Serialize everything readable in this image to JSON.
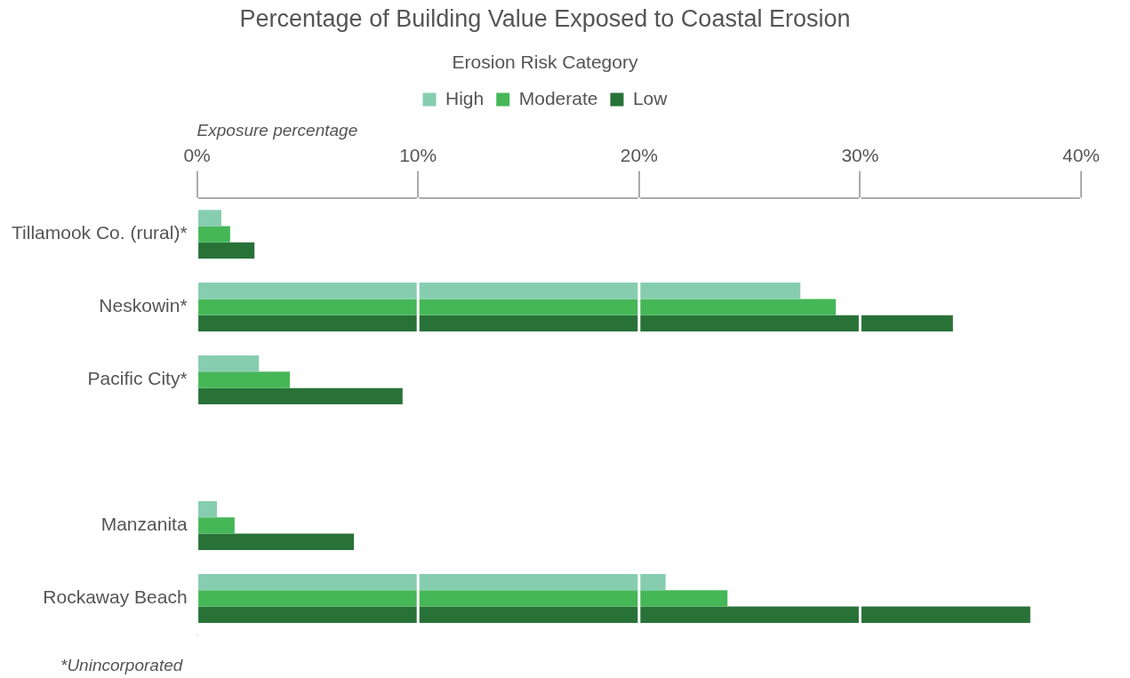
{
  "chart_data": {
    "type": "bar",
    "orientation": "horizontal",
    "title": "Percentage of Building Value Exposed to Coastal Erosion",
    "legend_title": "Erosion Risk Category",
    "xlabel": "Exposure percentage",
    "categories": [
      "Tillamook Co. (rural)*",
      "Neskowin*",
      "Pacific City*",
      null,
      "Manzanita",
      "Rockaway Beach"
    ],
    "series": [
      {
        "name": "High",
        "color": "#86cdb0",
        "values": [
          1.1,
          27.3,
          2.8,
          null,
          0.9,
          21.2
        ]
      },
      {
        "name": "Moderate",
        "color": "#45b757",
        "values": [
          1.5,
          28.9,
          4.2,
          null,
          1.7,
          24.0
        ]
      },
      {
        "name": "Low",
        "color": "#287238",
        "values": [
          2.6,
          34.2,
          9.3,
          null,
          7.1,
          37.7
        ]
      }
    ],
    "xlim": [
      0,
      40
    ],
    "xticks": [
      {
        "value": 0,
        "label": "0%"
      },
      {
        "value": 10,
        "label": "10%"
      },
      {
        "value": 20,
        "label": "20%"
      },
      {
        "value": 30,
        "label": "30%"
      },
      {
        "value": 40,
        "label": "40%"
      }
    ],
    "grid": "x",
    "legend": "top",
    "annotations": [
      "*Unincorporated"
    ]
  }
}
